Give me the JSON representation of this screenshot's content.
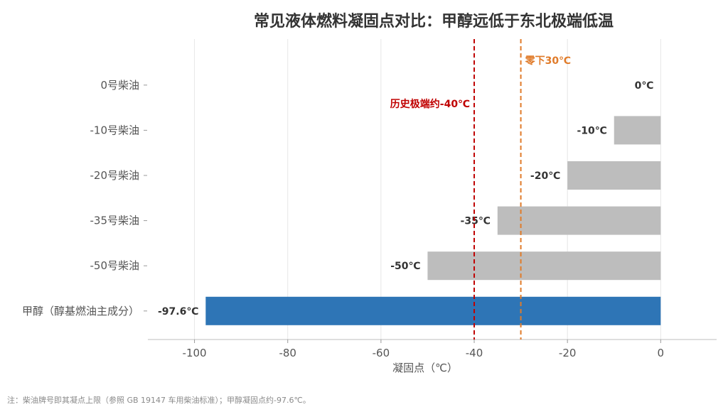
{
  "chart_data": {
    "type": "bar",
    "orientation": "horizontal",
    "title": "常见液体燃料凝固点对比：甲醇远低于东北极端低温",
    "xlabel": "凝固点（℃）",
    "xlim": [
      -110,
      12
    ],
    "xticks": [
      -100,
      -80,
      -60,
      -40,
      -20,
      0
    ],
    "grid": true,
    "categories": [
      "0号柴油",
      "-10号柴油",
      "-20号柴油",
      "-35号柴油",
      "-50号柴油",
      "甲醇（醇基燃油主成分）"
    ],
    "values": [
      0,
      -10,
      -20,
      -35,
      -50,
      -97.6
    ],
    "value_labels": [
      "0℃",
      "-10℃",
      "-20℃",
      "-35℃",
      "-50℃",
      "-97.6℃"
    ],
    "bar_colors": [
      "#bdbdbd",
      "#bdbdbd",
      "#bdbdbd",
      "#bdbdbd",
      "#bdbdbd",
      "#2e75b6"
    ],
    "reference_lines": [
      {
        "x": -40,
        "label": "历史极端约-40℃",
        "color": "#c00000"
      },
      {
        "x": -30,
        "label": "零下30℃",
        "color": "#e07b2a"
      }
    ]
  },
  "footnote": "注：柴油牌号即其凝点上限（参照 GB 19147 车用柴油标准）；甲醇凝固点约-97.6℃。"
}
